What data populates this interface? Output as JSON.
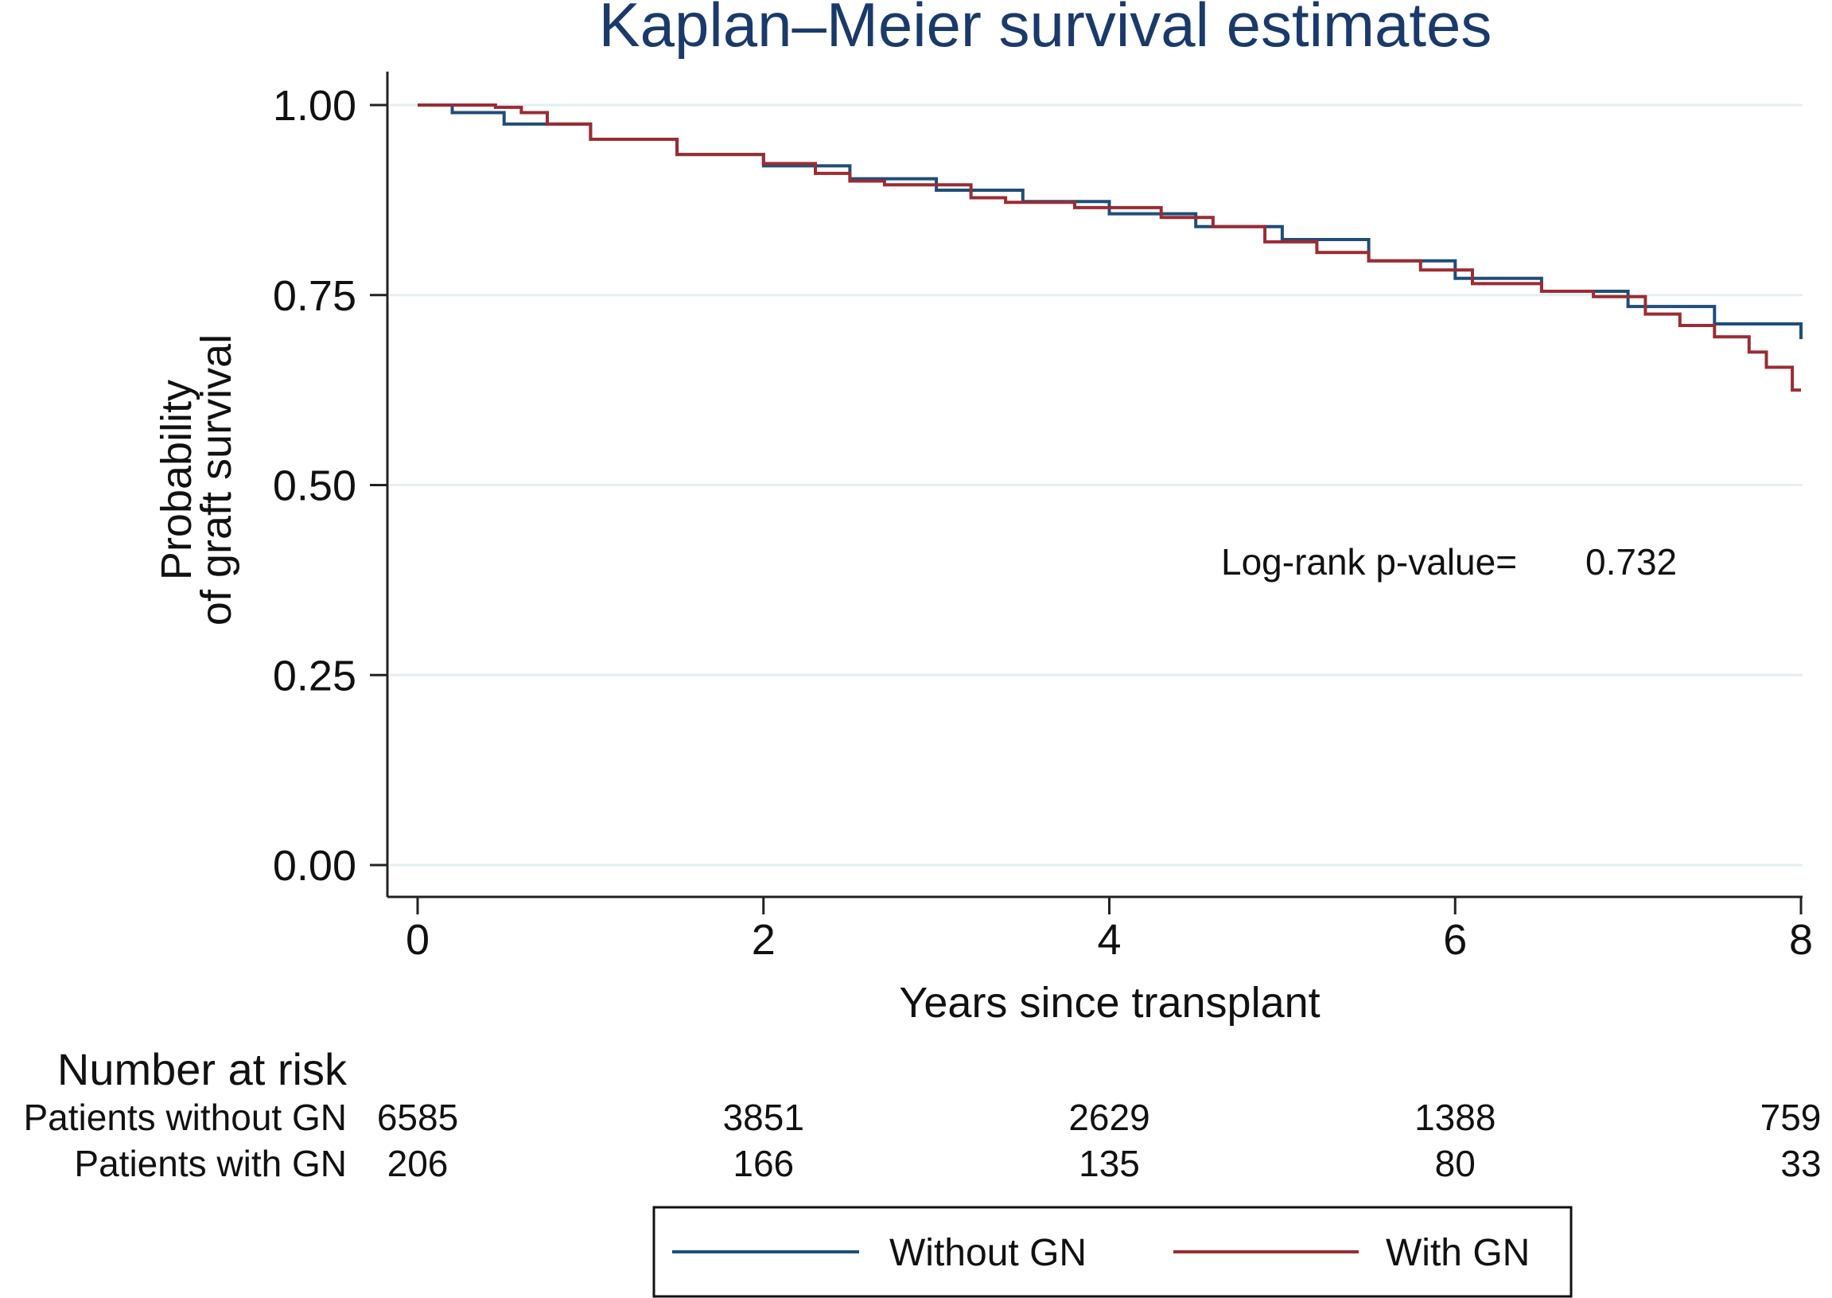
{
  "chart_data": {
    "type": "line",
    "step": true,
    "title": "Kaplan–Meier survival estimates",
    "xlabel": "Years since transplant",
    "ylabel_lines": [
      "Probability",
      "of graft survival"
    ],
    "xlim": [
      0,
      8
    ],
    "ylim": [
      0,
      1
    ],
    "x_ticks": [
      "0",
      "2",
      "4",
      "6",
      "8"
    ],
    "y_ticks": [
      "0.00",
      "0.25",
      "0.50",
      "0.75",
      "1.00"
    ],
    "grid": true,
    "annotation": {
      "label": "Log-rank p-value=",
      "value": "0.732"
    },
    "series": [
      {
        "name": "Without GN",
        "color": "#1f4e79",
        "x": [
          0,
          0.2,
          0.5,
          1.0,
          1.5,
          2.0,
          2.5,
          3.0,
          3.5,
          4.0,
          4.5,
          5.0,
          5.5,
          6.0,
          6.5,
          7.0,
          7.5,
          8.0
        ],
        "y": [
          1.0,
          0.99,
          0.975,
          0.955,
          0.935,
          0.92,
          0.903,
          0.888,
          0.873,
          0.857,
          0.84,
          0.823,
          0.795,
          0.772,
          0.755,
          0.735,
          0.712,
          0.692
        ]
      },
      {
        "name": "With GN",
        "color": "#9b2c34",
        "x": [
          0,
          0.45,
          0.6,
          0.75,
          1.0,
          1.5,
          2.0,
          2.3,
          2.5,
          2.7,
          3.2,
          3.4,
          3.8,
          4.3,
          4.6,
          4.9,
          5.2,
          5.5,
          5.8,
          6.1,
          6.5,
          6.8,
          7.1,
          7.3,
          7.5,
          7.7,
          7.8,
          7.95,
          8.0
        ],
        "y": [
          1.0,
          0.997,
          0.99,
          0.975,
          0.955,
          0.935,
          0.923,
          0.91,
          0.9,
          0.895,
          0.878,
          0.872,
          0.865,
          0.852,
          0.84,
          0.82,
          0.806,
          0.795,
          0.783,
          0.765,
          0.755,
          0.748,
          0.725,
          0.71,
          0.695,
          0.675,
          0.655,
          0.625,
          0.625
        ]
      }
    ]
  },
  "risk_table": {
    "header": "Number at risk",
    "rows": [
      {
        "label": "Patients without GN",
        "values": [
          "6585",
          "3851",
          "2629",
          "1388",
          "759"
        ]
      },
      {
        "label": "Patients with GN",
        "values": [
          "206",
          "166",
          "135",
          "80",
          "33"
        ]
      }
    ]
  },
  "legend": {
    "items": [
      "Without GN",
      "With GN"
    ]
  }
}
